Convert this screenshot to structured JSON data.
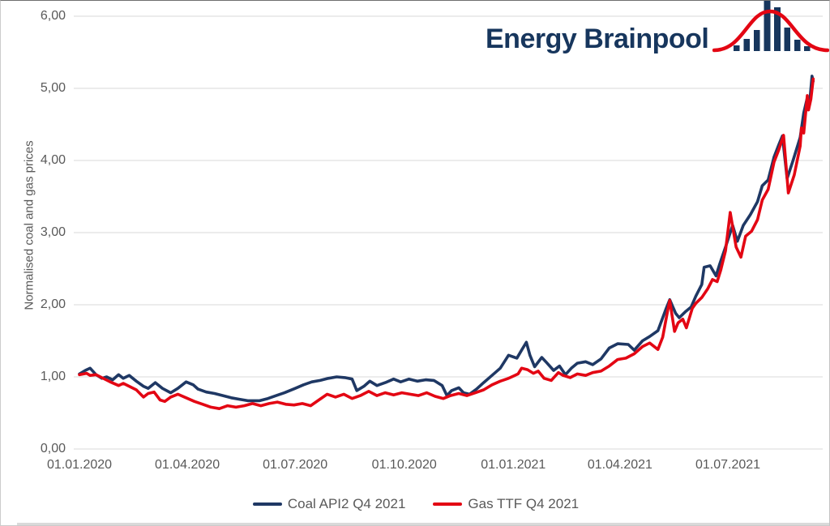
{
  "logo": {
    "text": "Energy Brainpool",
    "icon": "histogram-bell-curve",
    "text_color": "#17365D",
    "accent_red": "#E30613"
  },
  "colors": {
    "coal_line": "#1F3864",
    "gas_line": "#E30613",
    "gridline": "#D9D9D9",
    "tick_text": "#595959"
  },
  "chart_data": {
    "type": "line",
    "title": "",
    "xlabel": "",
    "ylabel": "Normalised coal and gas prices",
    "ylim": [
      0,
      6
    ],
    "x_range": [
      "2020-01-01",
      "2021-09-11"
    ],
    "grid": "horizontal-only",
    "legend_position": "bottom-center",
    "yticks": [
      {
        "value": 0,
        "label": "0,00"
      },
      {
        "value": 1,
        "label": "1,00"
      },
      {
        "value": 2,
        "label": "2,00"
      },
      {
        "value": 3,
        "label": "3,00"
      },
      {
        "value": 4,
        "label": "4,00"
      },
      {
        "value": 5,
        "label": "5,00"
      },
      {
        "value": 6,
        "label": "6,00"
      }
    ],
    "xticks": [
      {
        "date": "2020-01-01",
        "label": "01.01.2020"
      },
      {
        "date": "2020-04-01",
        "label": "01.04.2020"
      },
      {
        "date": "2020-07-01",
        "label": "01.07.2020"
      },
      {
        "date": "2020-10-01",
        "label": "01.10.2020"
      },
      {
        "date": "2021-01-01",
        "label": "01.01.2021"
      },
      {
        "date": "2021-04-01",
        "label": "01.04.2021"
      },
      {
        "date": "2021-07-01",
        "label": "01.07.2021"
      }
    ],
    "series": [
      {
        "name": "Coal API2 Q4 2021",
        "color": "#1F3864",
        "points": [
          [
            "2020-01-01",
            1.04
          ],
          [
            "2020-01-06",
            1.09
          ],
          [
            "2020-01-10",
            1.12
          ],
          [
            "2020-01-15",
            1.03
          ],
          [
            "2020-01-20",
            0.98
          ],
          [
            "2020-01-24",
            1.0
          ],
          [
            "2020-01-29",
            0.96
          ],
          [
            "2020-02-03",
            1.03
          ],
          [
            "2020-02-07",
            0.98
          ],
          [
            "2020-02-12",
            1.02
          ],
          [
            "2020-02-18",
            0.94
          ],
          [
            "2020-02-24",
            0.87
          ],
          [
            "2020-02-28",
            0.84
          ],
          [
            "2020-03-05",
            0.92
          ],
          [
            "2020-03-11",
            0.84
          ],
          [
            "2020-03-18",
            0.78
          ],
          [
            "2020-03-24",
            0.84
          ],
          [
            "2020-03-31",
            0.93
          ],
          [
            "2020-04-06",
            0.89
          ],
          [
            "2020-04-10",
            0.83
          ],
          [
            "2020-04-17",
            0.79
          ],
          [
            "2020-04-24",
            0.77
          ],
          [
            "2020-05-01",
            0.74
          ],
          [
            "2020-05-08",
            0.71
          ],
          [
            "2020-05-15",
            0.69
          ],
          [
            "2020-05-22",
            0.67
          ],
          [
            "2020-06-01",
            0.67
          ],
          [
            "2020-06-08",
            0.7
          ],
          [
            "2020-06-15",
            0.74
          ],
          [
            "2020-06-22",
            0.78
          ],
          [
            "2020-07-01",
            0.84
          ],
          [
            "2020-07-08",
            0.89
          ],
          [
            "2020-07-15",
            0.93
          ],
          [
            "2020-07-22",
            0.95
          ],
          [
            "2020-07-29",
            0.98
          ],
          [
            "2020-08-05",
            1.0
          ],
          [
            "2020-08-12",
            0.99
          ],
          [
            "2020-08-18",
            0.97
          ],
          [
            "2020-08-22",
            0.81
          ],
          [
            "2020-08-28",
            0.87
          ],
          [
            "2020-09-02",
            0.94
          ],
          [
            "2020-09-08",
            0.88
          ],
          [
            "2020-09-15",
            0.92
          ],
          [
            "2020-09-22",
            0.97
          ],
          [
            "2020-09-28",
            0.93
          ],
          [
            "2020-10-05",
            0.97
          ],
          [
            "2020-10-12",
            0.94
          ],
          [
            "2020-10-19",
            0.96
          ],
          [
            "2020-10-26",
            0.95
          ],
          [
            "2020-11-02",
            0.88
          ],
          [
            "2020-11-06",
            0.74
          ],
          [
            "2020-11-10",
            0.81
          ],
          [
            "2020-11-16",
            0.85
          ],
          [
            "2020-11-20",
            0.78
          ],
          [
            "2020-11-25",
            0.76
          ],
          [
            "2020-12-01",
            0.83
          ],
          [
            "2020-12-07",
            0.92
          ],
          [
            "2020-12-14",
            1.02
          ],
          [
            "2020-12-21",
            1.12
          ],
          [
            "2020-12-28",
            1.3
          ],
          [
            "2021-01-04",
            1.26
          ],
          [
            "2021-01-08",
            1.37
          ],
          [
            "2021-01-12",
            1.48
          ],
          [
            "2021-01-15",
            1.3
          ],
          [
            "2021-01-19",
            1.14
          ],
          [
            "2021-01-25",
            1.27
          ],
          [
            "2021-01-29",
            1.2
          ],
          [
            "2021-02-04",
            1.09
          ],
          [
            "2021-02-09",
            1.15
          ],
          [
            "2021-02-14",
            1.03
          ],
          [
            "2021-02-19",
            1.12
          ],
          [
            "2021-02-24",
            1.19
          ],
          [
            "2021-03-03",
            1.21
          ],
          [
            "2021-03-09",
            1.17
          ],
          [
            "2021-03-16",
            1.25
          ],
          [
            "2021-03-23",
            1.4
          ],
          [
            "2021-03-30",
            1.46
          ],
          [
            "2021-04-08",
            1.45
          ],
          [
            "2021-04-13",
            1.37
          ],
          [
            "2021-04-20",
            1.5
          ],
          [
            "2021-04-26",
            1.56
          ],
          [
            "2021-05-03",
            1.64
          ],
          [
            "2021-05-10",
            1.95
          ],
          [
            "2021-05-13",
            2.07
          ],
          [
            "2021-05-18",
            1.88
          ],
          [
            "2021-05-21",
            1.82
          ],
          [
            "2021-05-26",
            1.9
          ],
          [
            "2021-05-31",
            1.97
          ],
          [
            "2021-06-04",
            2.12
          ],
          [
            "2021-06-09",
            2.28
          ],
          [
            "2021-06-11",
            2.52
          ],
          [
            "2021-06-16",
            2.54
          ],
          [
            "2021-06-21",
            2.4
          ],
          [
            "2021-06-24",
            2.56
          ],
          [
            "2021-06-29",
            2.8
          ],
          [
            "2021-07-05",
            3.1
          ],
          [
            "2021-07-09",
            2.88
          ],
          [
            "2021-07-14",
            3.1
          ],
          [
            "2021-07-20",
            3.25
          ],
          [
            "2021-07-26",
            3.43
          ],
          [
            "2021-07-30",
            3.65
          ],
          [
            "2021-08-04",
            3.73
          ],
          [
            "2021-08-09",
            4.05
          ],
          [
            "2021-08-13",
            4.22
          ],
          [
            "2021-08-16",
            4.34
          ],
          [
            "2021-08-20",
            3.75
          ],
          [
            "2021-08-25",
            4.0
          ],
          [
            "2021-08-31",
            4.32
          ],
          [
            "2021-09-03",
            4.66
          ],
          [
            "2021-09-06",
            4.87
          ],
          [
            "2021-09-08",
            4.8
          ],
          [
            "2021-09-10",
            5.17
          ],
          [
            "2021-09-11",
            5.1
          ]
        ]
      },
      {
        "name": "Gas TTF Q4 2021",
        "color": "#E30613",
        "points": [
          [
            "2020-01-01",
            1.03
          ],
          [
            "2020-01-07",
            1.05
          ],
          [
            "2020-01-10",
            1.02
          ],
          [
            "2020-01-15",
            1.03
          ],
          [
            "2020-01-21",
            0.98
          ],
          [
            "2020-01-27",
            0.93
          ],
          [
            "2020-02-03",
            0.88
          ],
          [
            "2020-02-07",
            0.91
          ],
          [
            "2020-02-12",
            0.87
          ],
          [
            "2020-02-18",
            0.82
          ],
          [
            "2020-02-24",
            0.72
          ],
          [
            "2020-02-28",
            0.77
          ],
          [
            "2020-03-04",
            0.79
          ],
          [
            "2020-03-09",
            0.68
          ],
          [
            "2020-03-13",
            0.66
          ],
          [
            "2020-03-18",
            0.72
          ],
          [
            "2020-03-24",
            0.76
          ],
          [
            "2020-03-31",
            0.71
          ],
          [
            "2020-04-07",
            0.66
          ],
          [
            "2020-04-14",
            0.62
          ],
          [
            "2020-04-21",
            0.58
          ],
          [
            "2020-04-28",
            0.56
          ],
          [
            "2020-05-05",
            0.6
          ],
          [
            "2020-05-12",
            0.58
          ],
          [
            "2020-05-19",
            0.6
          ],
          [
            "2020-05-26",
            0.63
          ],
          [
            "2020-06-02",
            0.6
          ],
          [
            "2020-06-09",
            0.63
          ],
          [
            "2020-06-16",
            0.65
          ],
          [
            "2020-06-23",
            0.62
          ],
          [
            "2020-06-30",
            0.61
          ],
          [
            "2020-07-07",
            0.63
          ],
          [
            "2020-07-14",
            0.6
          ],
          [
            "2020-07-21",
            0.68
          ],
          [
            "2020-07-28",
            0.76
          ],
          [
            "2020-08-04",
            0.72
          ],
          [
            "2020-08-11",
            0.76
          ],
          [
            "2020-08-18",
            0.7
          ],
          [
            "2020-08-25",
            0.74
          ],
          [
            "2020-09-01",
            0.8
          ],
          [
            "2020-09-08",
            0.74
          ],
          [
            "2020-09-15",
            0.78
          ],
          [
            "2020-09-22",
            0.75
          ],
          [
            "2020-09-29",
            0.78
          ],
          [
            "2020-10-06",
            0.76
          ],
          [
            "2020-10-13",
            0.74
          ],
          [
            "2020-10-20",
            0.78
          ],
          [
            "2020-10-27",
            0.73
          ],
          [
            "2020-11-03",
            0.7
          ],
          [
            "2020-11-09",
            0.74
          ],
          [
            "2020-11-16",
            0.77
          ],
          [
            "2020-11-23",
            0.74
          ],
          [
            "2020-11-30",
            0.78
          ],
          [
            "2020-12-07",
            0.82
          ],
          [
            "2020-12-14",
            0.89
          ],
          [
            "2020-12-21",
            0.94
          ],
          [
            "2020-12-28",
            0.98
          ],
          [
            "2021-01-05",
            1.04
          ],
          [
            "2021-01-08",
            1.12
          ],
          [
            "2021-01-13",
            1.1
          ],
          [
            "2021-01-18",
            1.05
          ],
          [
            "2021-01-22",
            1.08
          ],
          [
            "2021-01-27",
            0.98
          ],
          [
            "2021-02-02",
            0.95
          ],
          [
            "2021-02-08",
            1.06
          ],
          [
            "2021-02-12",
            1.02
          ],
          [
            "2021-02-18",
            0.99
          ],
          [
            "2021-02-24",
            1.04
          ],
          [
            "2021-03-03",
            1.02
          ],
          [
            "2021-03-09",
            1.06
          ],
          [
            "2021-03-16",
            1.08
          ],
          [
            "2021-03-23",
            1.15
          ],
          [
            "2021-03-30",
            1.24
          ],
          [
            "2021-04-06",
            1.26
          ],
          [
            "2021-04-13",
            1.32
          ],
          [
            "2021-04-20",
            1.42
          ],
          [
            "2021-04-26",
            1.47
          ],
          [
            "2021-05-03",
            1.38
          ],
          [
            "2021-05-07",
            1.55
          ],
          [
            "2021-05-11",
            1.9
          ],
          [
            "2021-05-13",
            2.06
          ],
          [
            "2021-05-17",
            1.63
          ],
          [
            "2021-05-20",
            1.75
          ],
          [
            "2021-05-24",
            1.8
          ],
          [
            "2021-05-27",
            1.68
          ],
          [
            "2021-06-01",
            1.95
          ],
          [
            "2021-06-04",
            2.02
          ],
          [
            "2021-06-09",
            2.1
          ],
          [
            "2021-06-14",
            2.22
          ],
          [
            "2021-06-18",
            2.35
          ],
          [
            "2021-06-22",
            2.32
          ],
          [
            "2021-06-25",
            2.48
          ],
          [
            "2021-06-29",
            2.75
          ],
          [
            "2021-07-03",
            3.28
          ],
          [
            "2021-07-08",
            2.8
          ],
          [
            "2021-07-12",
            2.66
          ],
          [
            "2021-07-16",
            2.95
          ],
          [
            "2021-07-21",
            3.02
          ],
          [
            "2021-07-26",
            3.18
          ],
          [
            "2021-07-30",
            3.45
          ],
          [
            "2021-08-04",
            3.6
          ],
          [
            "2021-08-09",
            3.98
          ],
          [
            "2021-08-13",
            4.15
          ],
          [
            "2021-08-17",
            4.35
          ],
          [
            "2021-08-21",
            3.55
          ],
          [
            "2021-08-26",
            3.8
          ],
          [
            "2021-08-31",
            4.2
          ],
          [
            "2021-09-01",
            4.45
          ],
          [
            "2021-09-03",
            4.38
          ],
          [
            "2021-09-06",
            4.9
          ],
          [
            "2021-09-07",
            4.7
          ],
          [
            "2021-09-09",
            4.85
          ],
          [
            "2021-09-11",
            5.13
          ]
        ]
      }
    ]
  }
}
